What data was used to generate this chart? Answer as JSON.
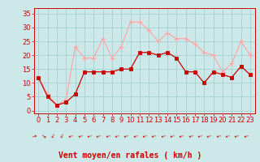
{
  "hours": [
    0,
    1,
    2,
    3,
    4,
    5,
    6,
    7,
    8,
    9,
    10,
    11,
    12,
    13,
    14,
    15,
    16,
    17,
    18,
    19,
    20,
    21,
    22,
    23
  ],
  "wind_avg": [
    12,
    5,
    2,
    3,
    6,
    14,
    14,
    14,
    14,
    15,
    15,
    21,
    21,
    20,
    21,
    19,
    14,
    14,
    10,
    14,
    13,
    12,
    16,
    13
  ],
  "wind_gust": [
    12,
    6,
    2,
    4,
    23,
    19,
    19,
    26,
    19,
    23,
    32,
    32,
    29,
    25,
    28,
    26,
    26,
    24,
    21,
    20,
    14,
    17,
    25,
    20
  ],
  "wind_dirs": [
    "↑",
    "→",
    "↓",
    "↓",
    "↙",
    "↙",
    "↙",
    "↙",
    "↙",
    "↙",
    "↙",
    "↙",
    "↙",
    "↙",
    "↙",
    "↙",
    "↙",
    "↙",
    "↙",
    "↙",
    "↙",
    "↙",
    "↙",
    "↙"
  ],
  "bg_color": "#cce8e8",
  "avg_color": "#cc0000",
  "gust_color": "#ffaaaa",
  "grid_color": "#99cccc",
  "xlabel": "Vent moyen/en rafales ( km/h )",
  "xlabel_color": "#cc0000",
  "xlabel_fontsize": 7,
  "tick_color": "#cc0000",
  "tick_fontsize": 6,
  "ylim": [
    -1,
    37
  ],
  "yticks": [
    0,
    5,
    10,
    15,
    20,
    25,
    30,
    35
  ],
  "ytick_fontsize": 6,
  "arrow_color": "#cc0000"
}
